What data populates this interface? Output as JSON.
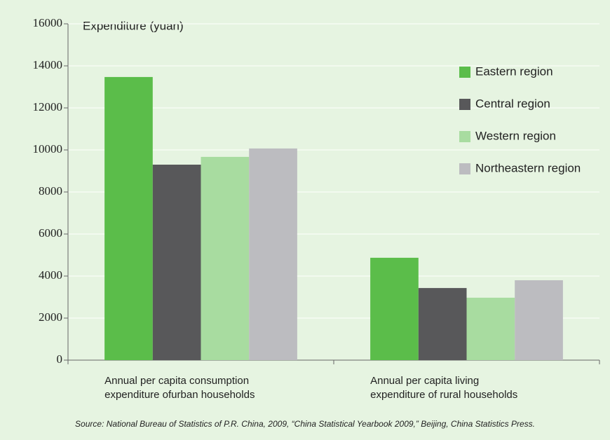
{
  "chart_data": {
    "type": "bar",
    "y_label": "Expenditure (yuan)",
    "source": "Source: National Bureau of Statistics of P.R. China, 2009, “China Statistical Yearbook 2009,” Beijing, China Statistics Press.",
    "categories": [
      "Annual per capita consumption\nexpenditure ofurban households",
      "Annual per capita living\nexpenditure of rural households"
    ],
    "series": [
      {
        "name": "Eastern region",
        "color": "#5bbd4a",
        "values": [
          13470,
          4870
        ]
      },
      {
        "name": "Central region",
        "color": "#58585a",
        "values": [
          9300,
          3430
        ]
      },
      {
        "name": "Western region",
        "color": "#a8dca0",
        "values": [
          9670,
          2970
        ]
      },
      {
        "name": "Northeastern region",
        "color": "#bcbcc0",
        "values": [
          10070,
          3800
        ]
      }
    ],
    "ylim": [
      0,
      16000
    ],
    "yticks": [
      0,
      2000,
      4000,
      6000,
      8000,
      10000,
      12000,
      14000,
      16000
    ],
    "grid": true,
    "legend": "upper right"
  }
}
